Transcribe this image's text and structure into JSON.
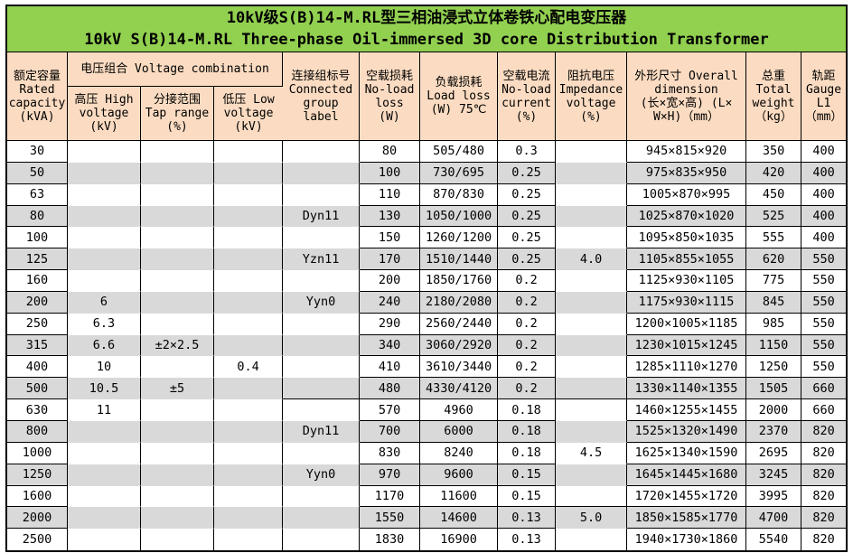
{
  "title": {
    "line1": "10kV级S(B)14-M.RL型三相油浸式立体卷铁心配电变压器",
    "line2": "10kV S(B)14-M.RL Three-phase Oil-immersed 3D core Distribution Transformer"
  },
  "colors": {
    "title_bg": "#92d050",
    "header_bg": "#fbdcc2",
    "stripe": "#d9d9d9",
    "grid": "#000000",
    "paper": "#ffffff"
  },
  "table": {
    "header": {
      "rated_capacity": "额定容量\nRated\ncapacity\n(kVA)",
      "voltage_combination": "电压组合 Voltage combination",
      "high_voltage": "高压 High\nvoltage\n(kV)",
      "tap_range": "分接范围\nTap range\n(%)",
      "low_voltage": "低压 Low\nvoltage\n(kV)",
      "connected_group": "连接组标号\nConnected\ngroup\nlabel",
      "no_load_loss": "空载损耗\nNo-load\nloss\n(W)",
      "load_loss": "负载损耗\nLoad loss\n(W) 75℃",
      "no_load_current": "空载电流\nNo-load\ncurrent\n(%)",
      "impedance_voltage": "阻抗电压\nImpedance\nvoltage\n(%)",
      "overall_dimension": "外形尺寸 Overall\ndimension\n(长×宽×高) (L×\nW×H)（mm）",
      "total_weight": "总重\nTotal\nweight\n（kg）",
      "gauge": "轨距\nGauge\nL1\n（mm）"
    },
    "column_keys": [
      "capacity",
      "high-voltage",
      "tap-range",
      "low-voltage",
      "connected-group",
      "no-load-loss",
      "load-loss",
      "no-load-current",
      "impedance-voltage",
      "overall-dimension",
      "total-weight",
      "gauge"
    ],
    "rows": [
      [
        "30",
        "",
        "",
        "",
        "",
        "80",
        "505/480",
        "0.3",
        "",
        "945×815×920",
        "350",
        "400"
      ],
      [
        "50",
        "",
        "",
        "",
        "",
        "100",
        "730/695",
        "0.25",
        "",
        "975×835×950",
        "420",
        "400"
      ],
      [
        "63",
        "",
        "",
        "",
        "",
        "110",
        "870/830",
        "0.25",
        "",
        "1005×870×995",
        "450",
        "400"
      ],
      [
        "80",
        "",
        "",
        "",
        "Dyn11",
        "130",
        "1050/1000",
        "0.25",
        "",
        "1025×870×1020",
        "525",
        "400"
      ],
      [
        "100",
        "",
        "",
        "",
        "",
        "150",
        "1260/1200",
        "0.25",
        "",
        "1095×850×1035",
        "555",
        "400"
      ],
      [
        "125",
        "",
        "",
        "",
        "Yzn11",
        "170",
        "1510/1440",
        "0.25",
        "4.0",
        "1105×855×1055",
        "620",
        "550"
      ],
      [
        "160",
        "",
        "",
        "",
        "",
        "200",
        "1850/1760",
        "0.2",
        "",
        "1125×930×1105",
        "775",
        "550"
      ],
      [
        "200",
        "6",
        "",
        "",
        "Yyn0",
        "240",
        "2180/2080",
        "0.2",
        "",
        "1175×930×1115",
        "845",
        "550"
      ],
      [
        "250",
        "6.3",
        "",
        "",
        "",
        "290",
        "2560/2440",
        "0.2",
        "",
        "1200×1005×1185",
        "985",
        "550"
      ],
      [
        "315",
        "6.6",
        "±2×2.5",
        "",
        "",
        "340",
        "3060/2920",
        "0.2",
        "",
        "1230×1015×1245",
        "1150",
        "550"
      ],
      [
        "400",
        "10",
        "",
        "0.4",
        "",
        "410",
        "3610/3440",
        "0.2",
        "",
        "1285×1110×1270",
        "1250",
        "550"
      ],
      [
        "500",
        "10.5",
        "±5",
        "",
        "",
        "480",
        "4330/4120",
        "0.2",
        "",
        "1330×1140×1355",
        "1505",
        "660"
      ],
      [
        "630",
        "11",
        "",
        "",
        "",
        "570",
        "4960",
        "0.18",
        "",
        "1460×1255×1455",
        "2000",
        "660"
      ],
      [
        "800",
        "",
        "",
        "",
        "Dyn11",
        "700",
        "6000",
        "0.18",
        "",
        "1525×1320×1490",
        "2370",
        "820"
      ],
      [
        "1000",
        "",
        "",
        "",
        "",
        "830",
        "8240",
        "0.18",
        "4.5",
        "1625×1340×1590",
        "2695",
        "820"
      ],
      [
        "1250",
        "",
        "",
        "",
        "Yyn0",
        "970",
        "9600",
        "0.15",
        "",
        "1645×1445×1680",
        "3245",
        "820"
      ],
      [
        "1600",
        "",
        "",
        "",
        "",
        "1170",
        "11600",
        "0.15",
        "",
        "1720×1455×1720",
        "3995",
        "820"
      ],
      [
        "2000",
        "",
        "",
        "",
        "",
        "1550",
        "14600",
        "0.13",
        "5.0",
        "1850×1585×1770",
        "4700",
        "820"
      ],
      [
        "2500",
        "",
        "",
        "",
        "",
        "1830",
        "16900",
        "0.13",
        "",
        "1940×1730×1860",
        "5540",
        "820"
      ]
    ],
    "merged_region_borders": {
      "note": "columns drawn without horizontal grid lines; border kept only after listed row indexes",
      "connected_group_border_after_rows": [
        11
      ],
      "impedance_border_after_rows": [
        11,
        16
      ]
    }
  }
}
